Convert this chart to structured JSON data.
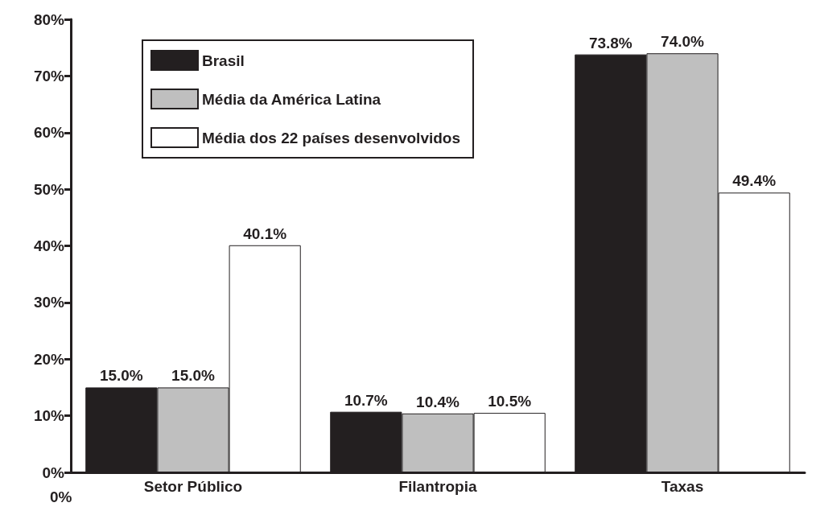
{
  "chart_data": {
    "type": "bar",
    "categories": [
      "Setor Público",
      "Filantropia",
      "Taxas"
    ],
    "series": [
      {
        "name": "Brasil",
        "color": "#231f20",
        "values": [
          15.0,
          10.7,
          73.8
        ],
        "value_labels": [
          "15.0%",
          "10.7%",
          "73.8%"
        ]
      },
      {
        "name": "Média da América Latina",
        "color": "#bfbfbf",
        "values": [
          15.0,
          10.4,
          74.0
        ],
        "value_labels": [
          "15.0%",
          "10.4%",
          "74.0%"
        ]
      },
      {
        "name": "Média dos 22 países desenvolvidos",
        "color": "#ffffff",
        "values": [
          40.1,
          10.5,
          49.4
        ],
        "value_labels": [
          "40.1%",
          "10.5%",
          "49.4%"
        ]
      }
    ],
    "ylim": [
      0,
      80
    ],
    "yticks": [
      {
        "value": 0,
        "label": "0%"
      },
      {
        "value": 10,
        "label": "10%"
      },
      {
        "value": 20,
        "label": "20%"
      },
      {
        "value": 30,
        "label": "30%"
      },
      {
        "value": 40,
        "label": "40%"
      },
      {
        "value": 50,
        "label": "50%"
      },
      {
        "value": 60,
        "label": "60%"
      },
      {
        "value": 70,
        "label": "70%"
      },
      {
        "value": 80,
        "label": "80%"
      }
    ],
    "legend": "top left",
    "grid": false,
    "annotations": [
      "0%"
    ]
  }
}
